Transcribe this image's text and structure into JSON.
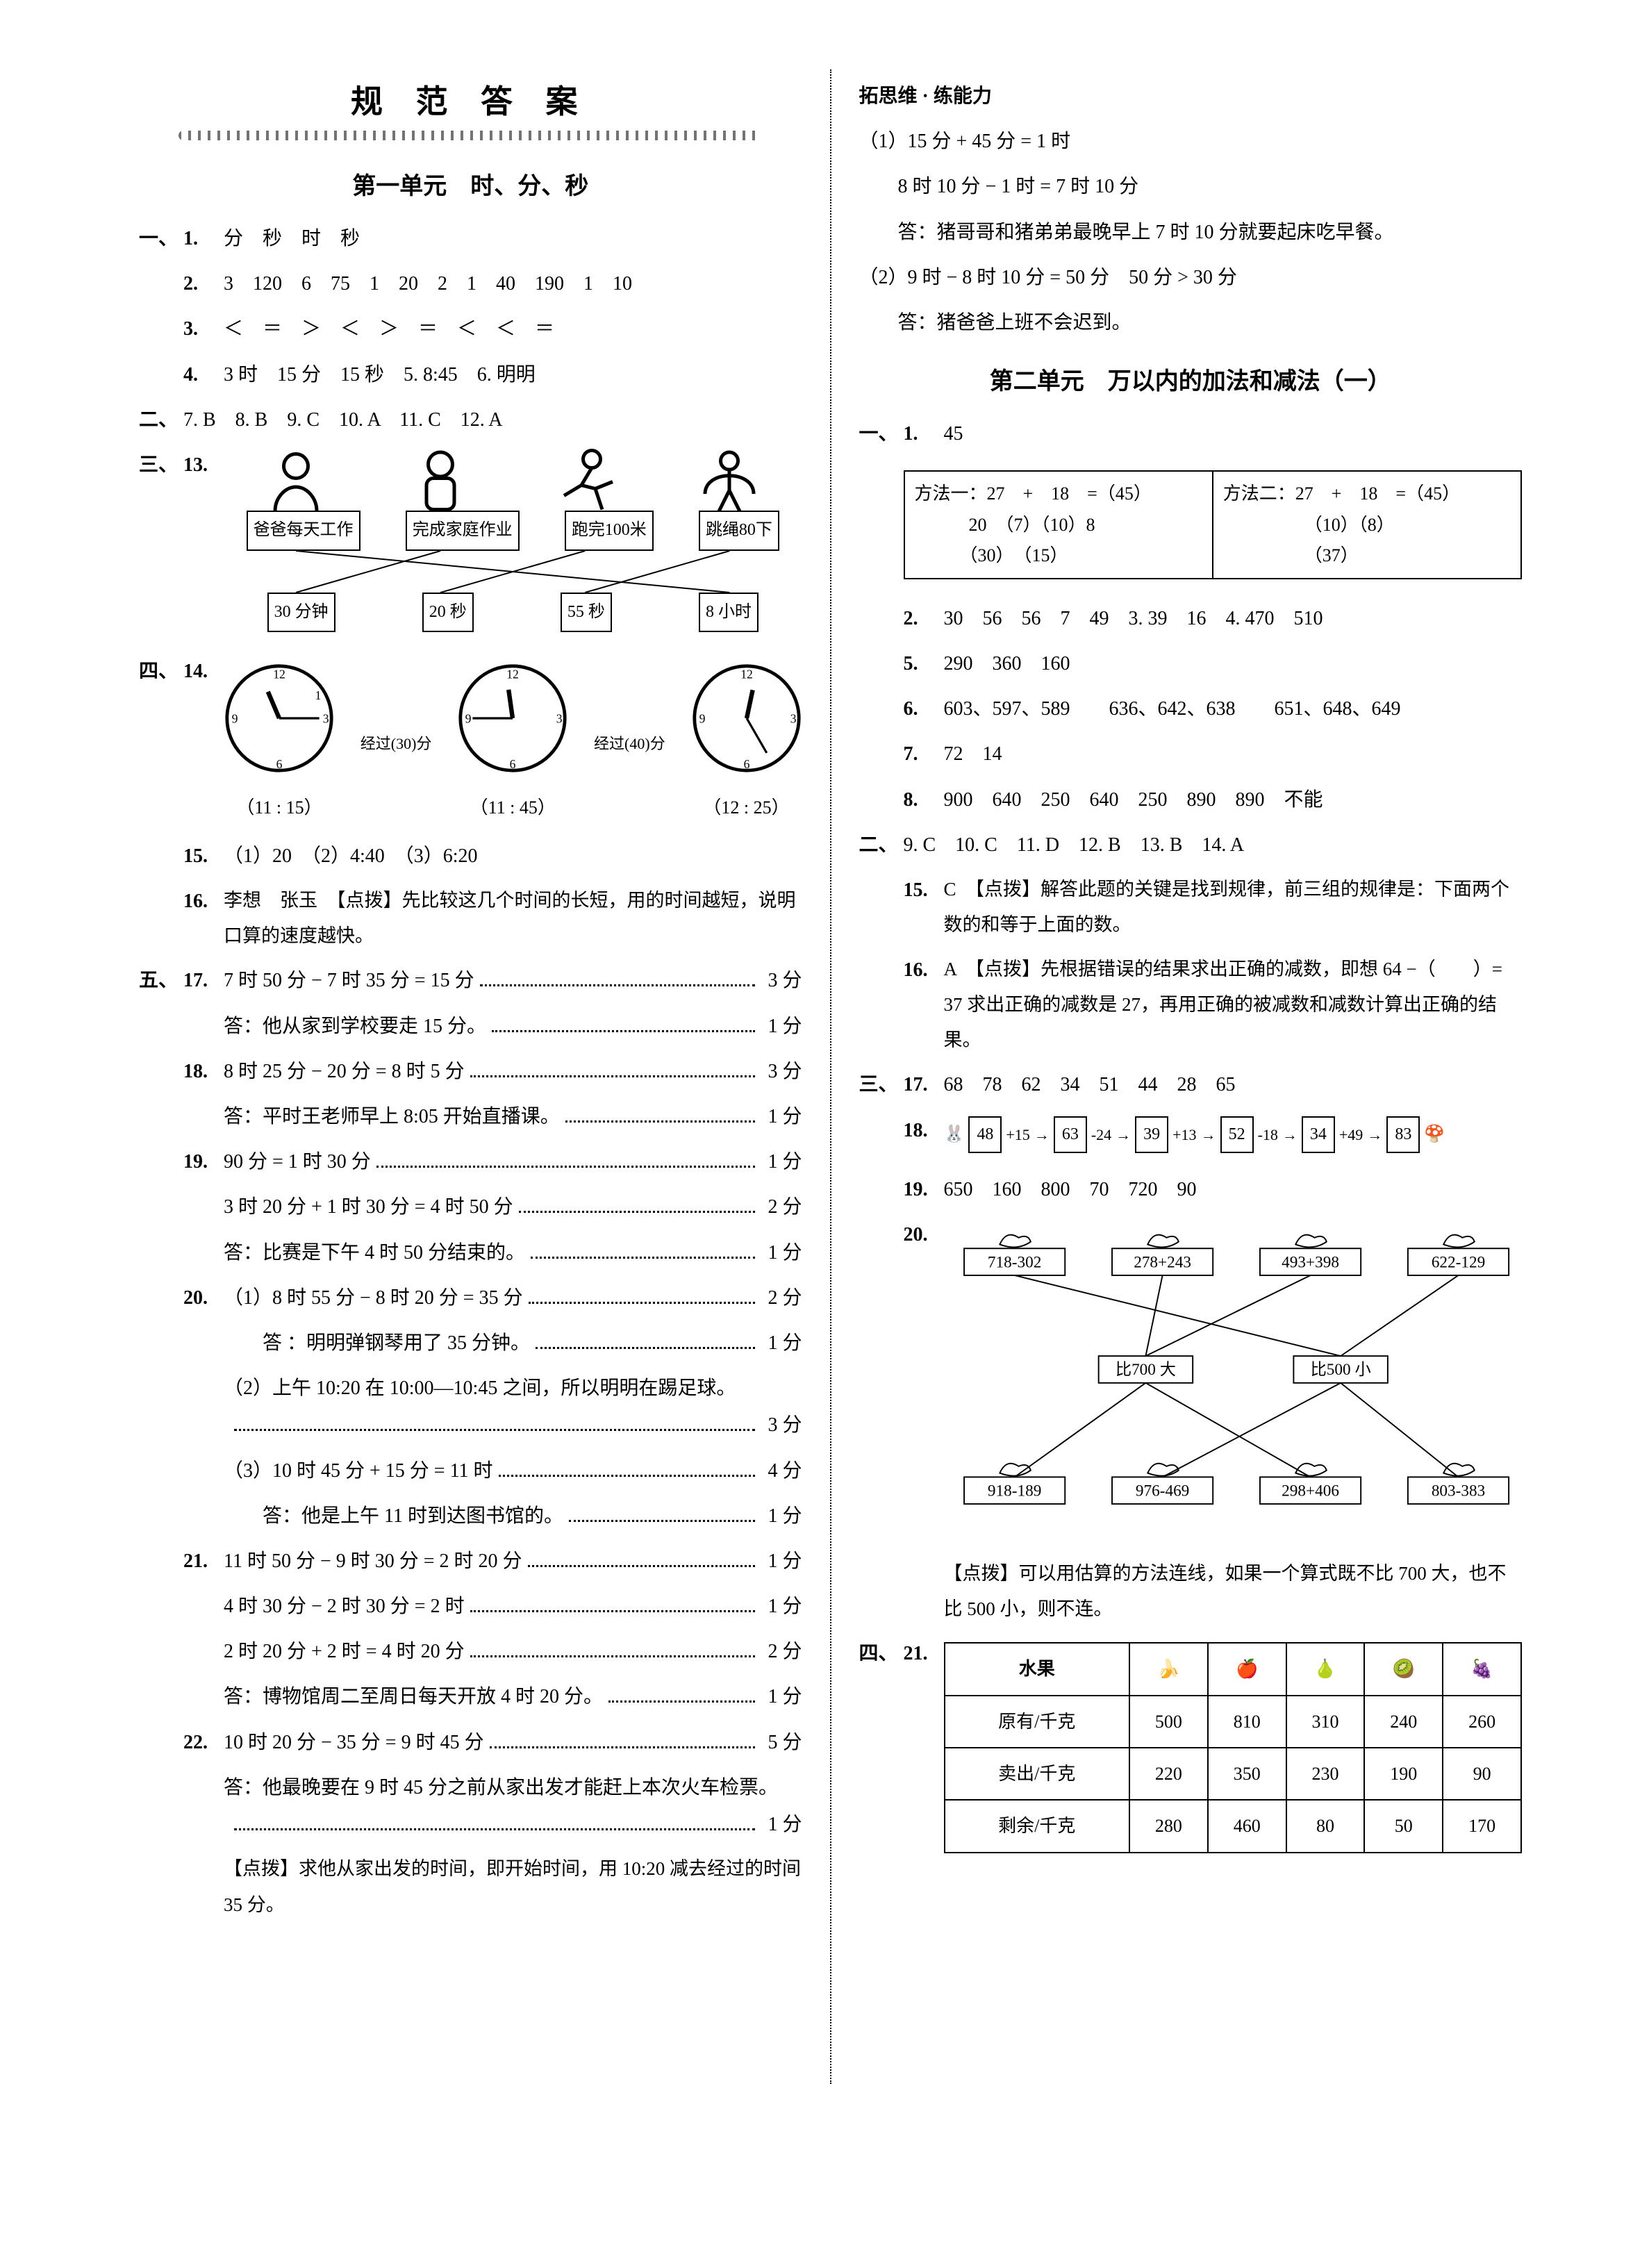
{
  "header": {
    "title": "规 范 答 案"
  },
  "left": {
    "unit_title": "第一单元　时、分、秒",
    "s1": {
      "label": "一、",
      "q1": {
        "num": "1.",
        "text": "分　秒　时　秒"
      },
      "q2": {
        "num": "2.",
        "text": "3　120　6　75　1　20　2　1　40　190　1　10"
      },
      "q3": {
        "num": "3.",
        "text": "＜　＝　＞　＜　＞　＝　＜　＜　＝"
      },
      "q4": {
        "num": "4.",
        "text": "3 时　15 分　15 秒　5. 8:45　6. 明明"
      }
    },
    "s2": {
      "label": "二、",
      "line": "7. B　8. B　9. C　10. A　11. C　12. A"
    },
    "s3": {
      "label": "三、",
      "q13": {
        "num": "13."
      },
      "top_labels": [
        "爸爸每天工作",
        "完成家庭作业",
        "跑完100米",
        "跳绳80下"
      ],
      "bottom_labels": [
        "30 分钟",
        "20 秒",
        "55 秒",
        "8 小时"
      ]
    },
    "s4": {
      "label": "四、",
      "q14": {
        "num": "14."
      },
      "clocks": [
        {
          "time": "（11 : 15）",
          "hour": 11,
          "min": 15
        },
        {
          "time": "（11 : 45）",
          "hour": 11,
          "min": 45
        },
        {
          "time": "（12 : 25）",
          "hour": 12,
          "min": 25
        }
      ],
      "arrows": [
        "经过(30)分",
        "经过(40)分"
      ],
      "q15": {
        "num": "15.",
        "text": "（1）20　（2）4:40　（3）6:20"
      },
      "q16": {
        "num": "16.",
        "text": "李想　张玉　【点拨】先比较这几个时间的长短，用的时间越短，说明口算的速度越快。"
      }
    },
    "s5": {
      "label": "五、",
      "q17": [
        {
          "t": "7 时 50 分 − 7 时 35 分 = 15 分",
          "p": "3 分"
        },
        {
          "t": "答：他从家到学校要走 15 分。",
          "p": "1 分"
        }
      ],
      "q17num": "17.",
      "q18num": "18.",
      "q18": [
        {
          "t": "8 时 25 分 − 20 分 = 8 时 5 分",
          "p": "3 分"
        },
        {
          "t": "答：平时王老师早上 8:05 开始直播课。",
          "p": "1 分"
        }
      ],
      "q19num": "19.",
      "q19": [
        {
          "t": "90 分 = 1 时 30 分",
          "p": "1 分"
        },
        {
          "t": "3 时 20 分 + 1 时 30 分 = 4 时 50 分",
          "p": "2 分"
        },
        {
          "t": "答：比赛是下午 4 时 50 分结束的。",
          "p": "1 分"
        }
      ],
      "q20num": "20.",
      "q20": [
        {
          "t": "（1）8 时 55 分 − 8 时 20 分 = 35 分",
          "p": "2 分"
        },
        {
          "t": "　　答 ：明明弹钢琴用了 35 分钟。",
          "p": "1 分"
        },
        {
          "t": "（2）上午 10:20 在 10:00—10:45 之间，所以明明在踢足球。",
          "p": "3 分",
          "wrap": true
        },
        {
          "t": "（3）10 时 45 分 + 15 分 = 11 时",
          "p": "4 分"
        },
        {
          "t": "　　答：他是上午 11 时到达图书馆的。",
          "p": "1 分"
        }
      ],
      "q21num": "21.",
      "q21": [
        {
          "t": "11 时 50 分 − 9 时 30 分 = 2 时 20 分",
          "p": "1 分"
        },
        {
          "t": "4 时 30 分 − 2 时 30 分 = 2 时",
          "p": "1 分"
        },
        {
          "t": "2 时 20 分 + 2 时 = 4 时 20 分",
          "p": "2 分"
        },
        {
          "t": "答：博物馆周二至周日每天开放 4 时 20 分。",
          "p": "1 分",
          "tight": true
        }
      ],
      "q22num": "22.",
      "q22": [
        {
          "t": "10 时 20 分 − 35 分 = 9 时 45 分",
          "p": "5 分"
        },
        {
          "t": "答：他最晚要在 9 时 45 分之前从家出发才能赶上本次火车检票。",
          "p": "1 分",
          "wrap": true
        }
      ],
      "q22hint": "【点拨】求他从家出发的时间，即开始时间，用 10:20 减去经过的时间 35 分。"
    }
  },
  "right": {
    "tuo_title": "拓思维 · 练能力",
    "tuo": [
      "（1）15 分 + 45 分 = 1 时",
      "　　8 时 10 分 − 1 时 = 7 时 10 分",
      "　　答：猪哥哥和猪弟弟最晚早上 7 时 10 分就要起床吃早餐。",
      "（2）9 时 − 8 时 10 分 = 50 分　50 分 > 30 分",
      "　　答：猪爸爸上班不会迟到。"
    ],
    "unit_title": "第二单元　万以内的加法和减法（一）",
    "s1": {
      "label": "一、",
      "q1": {
        "num": "1.",
        "text": "45"
      },
      "methods": {
        "colA": [
          "方法一：27　+　18　=（45）",
          "　　　20　（7）（10）8",
          "　　　（30）　（15）"
        ],
        "colB": [
          "方法二：27　+　18　=（45）",
          "　　　　　（10）（8）",
          "　　　　　（37）"
        ]
      },
      "q2": {
        "num": "2.",
        "text": "30　56　56　7　49　3. 39　16　4. 470　510"
      },
      "q5": {
        "num": "5.",
        "text": "290　360　160"
      },
      "q6": {
        "num": "6.",
        "text": "603、597、589　　636、642、638　　651、648、649"
      },
      "q7": {
        "num": "7.",
        "text": "72　14"
      },
      "q8": {
        "num": "8.",
        "text": "900　640　250　640　250　890　890　不能"
      }
    },
    "s2": {
      "label": "二、",
      "line": "9. C　10. C　11. D　12. B　13. B　14. A",
      "q15": {
        "num": "15.",
        "text": "C　【点拨】解答此题的关键是找到规律，前三组的规律是：下面两个数的和等于上面的数。"
      },
      "q16": {
        "num": "16.",
        "text": "A　【点拨】先根据错误的结果求出正确的减数，即想 64 −（　　）= 37 求出正确的减数是 27，再用正确的被减数和减数计算出正确的结果。"
      }
    },
    "s3": {
      "label": "三、",
      "q17": {
        "num": "17.",
        "text": "68　78　62　34　51　44　28　65"
      },
      "q18": {
        "num": "18.",
        "chain": [
          "48",
          "+15",
          "63",
          "-24",
          "39",
          "+13",
          "52",
          "-18",
          "34",
          "+49",
          "83"
        ]
      },
      "q19": {
        "num": "19.",
        "text": "650　160　800　70　720　90"
      },
      "q20": {
        "num": "20.",
        "top": [
          "718-302",
          "278+243",
          "493+398",
          "622-129"
        ],
        "mid": [
          "比700 大",
          "比500 小"
        ],
        "bottom": [
          "918-189",
          "976-469",
          "298+406",
          "803-383"
        ],
        "hint": "【点拨】可以用估算的方法连线，如果一个算式既不比 700 大，也不比 500 小，则不连。"
      }
    },
    "s4": {
      "label": "四、",
      "q21": {
        "num": "21.",
        "headers": [
          "水果",
          "🍌",
          "🍎",
          "🍐",
          "🥝",
          "🍇"
        ],
        "rows": [
          [
            "原有/千克",
            "500",
            "810",
            "310",
            "240",
            "260"
          ],
          [
            "卖出/千克",
            "220",
            "350",
            "230",
            "190",
            "90"
          ],
          [
            "剩余/千克",
            "280",
            "460",
            "80",
            "50",
            "170"
          ]
        ]
      }
    }
  }
}
